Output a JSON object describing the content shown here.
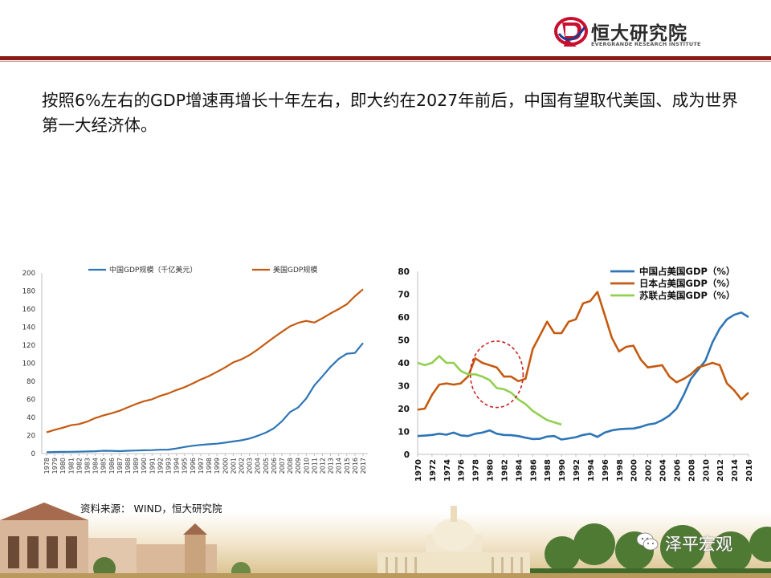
{
  "header": {
    "logo_cn": "恒大研究院",
    "logo_en": "EVERGRANDE RESEARCH INSTITUTE"
  },
  "headline": "按照6%左右的GDP增速再增长十年左右，即大约在2027年前后，中国有望取代美国、成为世界第一大经济体。",
  "source": "资料来源：  WIND，恒大研究院",
  "watermark": "泽平宏观",
  "colors": {
    "blue": "#2e75b6",
    "orange": "#c55a11",
    "green": "#92d050",
    "brand_red": "#8b1a1a",
    "dashed_red": "#cc2222"
  },
  "chart_data": [
    {
      "type": "line",
      "title": "",
      "xlabel": "",
      "ylabel": "",
      "ylim": [
        0,
        200
      ],
      "yticks": [
        0,
        20,
        40,
        60,
        80,
        100,
        120,
        140,
        160,
        180,
        200
      ],
      "grid": false,
      "legend_position": "top",
      "x": [
        1978,
        1979,
        1980,
        1981,
        1982,
        1983,
        1984,
        1985,
        1986,
        1987,
        1988,
        1989,
        1990,
        1991,
        1992,
        1993,
        1994,
        1995,
        1996,
        1997,
        1998,
        1999,
        2000,
        2001,
        2002,
        2003,
        2004,
        2005,
        2006,
        2007,
        2008,
        2009,
        2010,
        2011,
        2012,
        2013,
        2014,
        2015,
        2016,
        2017
      ],
      "series": [
        {
          "name": "中国GDP规模（千亿美元）",
          "color": "#2e75b6",
          "values": [
            1.5,
            1.8,
            1.9,
            2.0,
            2.1,
            2.3,
            2.6,
            3.1,
            3.0,
            2.7,
            3.1,
            3.4,
            3.6,
            3.8,
            4.3,
            4.4,
            5.6,
            7.3,
            8.6,
            9.6,
            10.3,
            10.9,
            12.1,
            13.4,
            14.7,
            16.6,
            19.6,
            23.1,
            27.9,
            35.7,
            46.0,
            51.0,
            61.0,
            75.5,
            85.6,
            96.1,
            104.8,
            110.6,
            111.4,
            122.4
          ]
        },
        {
          "name": "美国GDP规模",
          "color": "#c55a11",
          "values": [
            23.5,
            26.3,
            28.6,
            31.4,
            32.6,
            35.4,
            39.3,
            42.2,
            44.6,
            47.4,
            51.1,
            54.8,
            58.0,
            60.1,
            63.8,
            66.6,
            70.3,
            73.4,
            77.6,
            82.0,
            85.8,
            90.5,
            95.4,
            101.0,
            104.3,
            109.0,
            115.1,
            121.9,
            128.5,
            134.8,
            140.9,
            144.7,
            146.9,
            145.1,
            149.9,
            155.2,
            160.0,
            165.3,
            174.2,
            182.0
          ]
        }
      ]
    },
    {
      "type": "line",
      "title": "",
      "xlabel": "",
      "ylabel": "",
      "ylim": [
        0,
        80
      ],
      "yticks": [
        0,
        10,
        20,
        30,
        40,
        50,
        60,
        70,
        80
      ],
      "xticks": [
        1970,
        1972,
        1974,
        1976,
        1978,
        1980,
        1982,
        1984,
        1986,
        1988,
        1990,
        1992,
        1994,
        1996,
        1998,
        2000,
        2002,
        2004,
        2006,
        2008,
        2010,
        2012,
        2014,
        2016
      ],
      "grid": false,
      "legend_position": "top-right",
      "annotation": "dashed red ellipse highlighting 1978-1984",
      "series": [
        {
          "name": "中国占美国GDP（%）",
          "color": "#2e75b6",
          "x": [
            1970,
            1971,
            1972,
            1973,
            1974,
            1975,
            1976,
            1977,
            1978,
            1979,
            1980,
            1981,
            1982,
            1983,
            1984,
            1985,
            1986,
            1987,
            1988,
            1989,
            1990,
            1991,
            1992,
            1993,
            1994,
            1995,
            1996,
            1997,
            1998,
            1999,
            2000,
            2001,
            2002,
            2003,
            2004,
            2005,
            2006,
            2007,
            2008,
            2009,
            2010,
            2011,
            2012,
            2013,
            2014,
            2015,
            2016
          ],
          "values": [
            8,
            8.2,
            8.5,
            9,
            8.6,
            9.5,
            8.3,
            8,
            9,
            9.5,
            10.5,
            9,
            8.5,
            8.4,
            8,
            7.3,
            6.7,
            6.8,
            7.8,
            8,
            6.5,
            7,
            7.5,
            8.5,
            9,
            7.6,
            9.5,
            10.5,
            11,
            11.2,
            11.3,
            12,
            13,
            13.5,
            15,
            17,
            20,
            26,
            33,
            37,
            41,
            49,
            55,
            59,
            61,
            62,
            60
          ]
        },
        {
          "name": "日本占美国GDP（%）",
          "color": "#c55a11",
          "x": [
            1970,
            1971,
            1972,
            1973,
            1974,
            1975,
            1976,
            1977,
            1978,
            1979,
            1980,
            1981,
            1982,
            1983,
            1984,
            1985,
            1986,
            1987,
            1988,
            1989,
            1990,
            1991,
            1992,
            1993,
            1994,
            1995,
            1996,
            1997,
            1998,
            1999,
            2000,
            2001,
            2002,
            2003,
            2004,
            2005,
            2006,
            2007,
            2008,
            2009,
            2010,
            2011,
            2012,
            2013,
            2014,
            2015,
            2016
          ],
          "values": [
            19.5,
            20,
            26,
            30.5,
            31,
            30.5,
            31,
            34,
            42,
            40,
            39,
            38,
            34,
            34,
            32,
            33,
            46,
            52,
            58,
            53,
            53,
            58,
            59,
            66,
            67,
            71,
            61,
            51,
            45,
            47,
            47.5,
            41.5,
            38,
            38.5,
            39,
            34,
            31.5,
            33,
            35,
            38,
            39,
            40,
            39,
            31,
            28,
            24,
            27
          ]
        },
        {
          "name": "苏联占美国GDP（%）",
          "color": "#92d050",
          "x": [
            1970,
            1971,
            1972,
            1973,
            1974,
            1975,
            1976,
            1977,
            1978,
            1979,
            1980,
            1981,
            1982,
            1983,
            1984,
            1985,
            1986,
            1987,
            1988,
            1989,
            1990
          ],
          "values": [
            40,
            39,
            40,
            43,
            40,
            40,
            36.5,
            35,
            35,
            34,
            32.5,
            29,
            28.5,
            27,
            24,
            22,
            19,
            17,
            15,
            14,
            13
          ]
        }
      ]
    }
  ]
}
